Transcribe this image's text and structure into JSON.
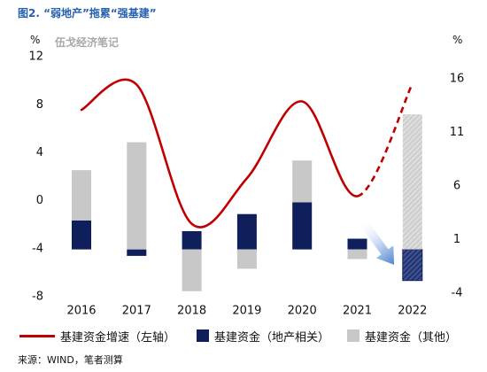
{
  "watermark": "伍戈经济笔记",
  "source": "来源：WIND，笔者测算",
  "colors": {
    "title": "#2760b0",
    "watermark": "#a8a8a8",
    "arrow": "#4f83cf"
  },
  "icons": {
    "arrow": "arrow-down-right-icon"
  },
  "chart_data": {
    "type": "bar",
    "title": "图2. “弱地产”拖累“强基建”",
    "categories": [
      "2016",
      "2017",
      "2018",
      "2019",
      "2020",
      "2021",
      "2022"
    ],
    "stacked": true,
    "grid": false,
    "legend_position": "bottom",
    "y_axis_left": {
      "unit": "%",
      "range": [
        -8,
        12
      ],
      "ticks": [
        12,
        8,
        4,
        0,
        -4,
        -8
      ]
    },
    "y_axis_right": {
      "unit": "%",
      "range": [
        -4,
        16
      ],
      "ticks": [
        16,
        11,
        6,
        1,
        -4
      ]
    },
    "series": [
      {
        "name": "基建资金增速（左轴）",
        "type": "line",
        "axis": "left",
        "color": "#c00000",
        "values": [
          7.5,
          9.6,
          -2.0,
          1.8,
          8.2,
          0.3,
          9.7
        ],
        "dashed_segments": [
          false,
          false,
          false,
          false,
          false,
          true
        ]
      },
      {
        "name": "基建资金（地产相关）",
        "type": "bar",
        "axis": "right",
        "color": "#0f1f5c",
        "values": [
          2.7,
          -0.6,
          1.7,
          3.3,
          4.4,
          1.0,
          -2.9
        ],
        "hatched": [
          false,
          false,
          false,
          false,
          false,
          false,
          true
        ]
      },
      {
        "name": "基建资金（其他）",
        "type": "bar",
        "axis": "right",
        "color": "#c8c8c8",
        "values": [
          4.7,
          10.0,
          -3.9,
          -1.8,
          3.9,
          -0.9,
          12.6
        ],
        "hatched": [
          false,
          false,
          false,
          false,
          false,
          false,
          true
        ]
      }
    ]
  }
}
